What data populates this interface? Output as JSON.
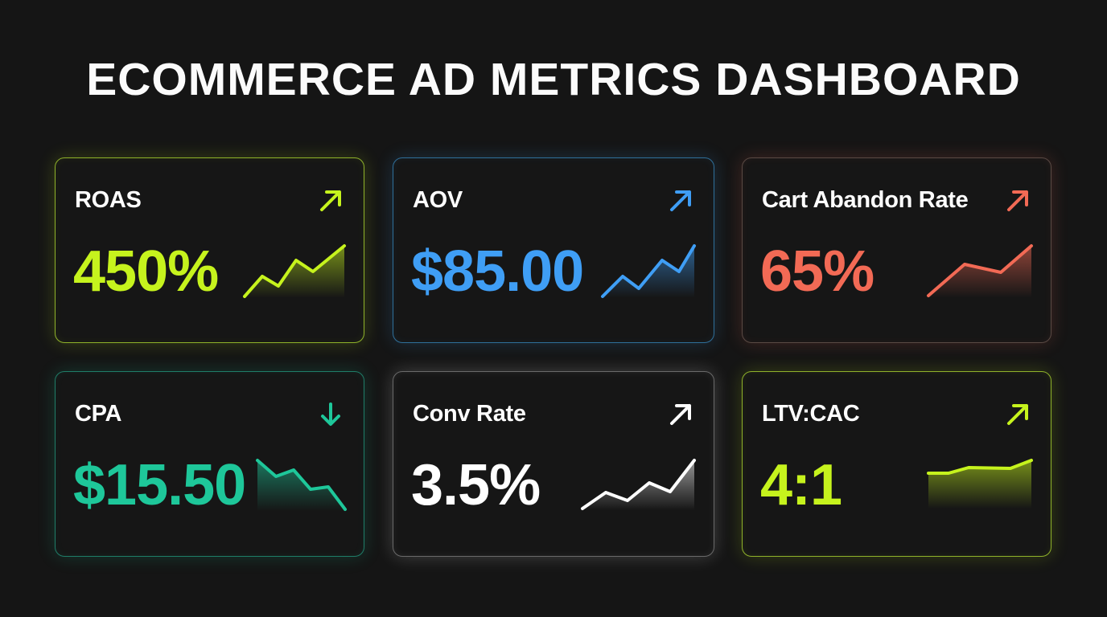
{
  "header": {
    "title": "ECOMMERCE AD METRICS DASHBOARD"
  },
  "cards": [
    {
      "label": "ROAS",
      "value": "450%",
      "trend": "up",
      "trend_icon": "arrow-up-right-icon",
      "color": "#c6f31d"
    },
    {
      "label": "AOV",
      "value": "$85.00",
      "trend": "up",
      "trend_icon": "arrow-up-right-icon",
      "color": "#3f9ef5"
    },
    {
      "label": "Cart Abandon Rate",
      "value": "65%",
      "trend": "up",
      "trend_icon": "arrow-up-right-icon",
      "color": "#f26a55"
    },
    {
      "label": "CPA",
      "value": "$15.50",
      "trend": "down",
      "trend_icon": "arrow-down-icon",
      "color": "#1ec79a"
    },
    {
      "label": "Conv Rate",
      "value": "3.5%",
      "trend": "up",
      "trend_icon": "arrow-up-right-icon",
      "color": "#ffffff"
    },
    {
      "label": "LTV:CAC",
      "value": "4:1",
      "trend": "up",
      "trend_icon": "arrow-up-right-icon",
      "color": "#c6f31d"
    }
  ]
}
